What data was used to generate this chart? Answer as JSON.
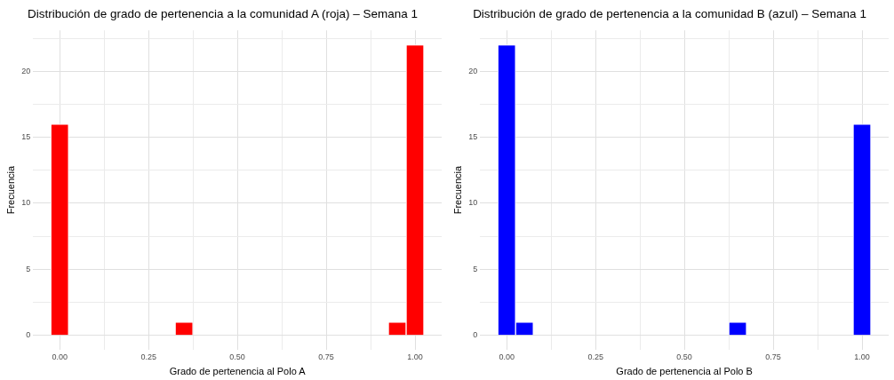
{
  "chart_data": [
    {
      "type": "histogram",
      "title": "Distribución de grado de pertenencia a la comunidad A (roja) – Semana 1",
      "xlabel": "Grado de pertenencia al Polo A",
      "ylabel": "Frecuencia",
      "bins": [
        -0.025,
        0.025,
        0.075,
        0.125,
        0.175,
        0.225,
        0.275,
        0.325,
        0.375,
        0.425,
        0.475,
        0.525,
        0.575,
        0.625,
        0.675,
        0.725,
        0.775,
        0.825,
        0.875,
        0.925,
        0.975,
        1.025
      ],
      "values": [
        16,
        0,
        0,
        0,
        0,
        0,
        0,
        1,
        0,
        0,
        0,
        0,
        0,
        0,
        0,
        0,
        0,
        0,
        0,
        1,
        22
      ],
      "color": "#ff0000",
      "xlim": [
        -0.075,
        1.075
      ],
      "ylim": [
        -1.1,
        23.1
      ],
      "xticks": [
        {
          "value": 0,
          "label": "0.00"
        },
        {
          "value": 0.125,
          "label": null
        },
        {
          "value": 0.25,
          "label": "0.25"
        },
        {
          "value": 0.375,
          "label": null
        },
        {
          "value": 0.5,
          "label": "0.50"
        },
        {
          "value": 0.625,
          "label": null
        },
        {
          "value": 0.75,
          "label": "0.75"
        },
        {
          "value": 0.875,
          "label": null
        },
        {
          "value": 1,
          "label": "1.00"
        }
      ],
      "yticks": [
        0,
        {
          "value": 2.5,
          "label": null
        },
        5,
        {
          "value": 7.5,
          "label": null
        },
        10,
        {
          "value": 12.5,
          "label": null
        },
        15,
        {
          "value": 17.5,
          "label": null
        },
        20,
        {
          "value": 22.5,
          "label": null
        }
      ],
      "grid": true,
      "legend": false
    },
    {
      "type": "histogram",
      "title": "Distribución de grado de pertenencia a la comunidad B (azul) – Semana 1",
      "xlabel": "Grado de pertenencia al Polo B",
      "ylabel": "Frecuencia",
      "bins": [
        -0.025,
        0.025,
        0.075,
        0.125,
        0.175,
        0.225,
        0.275,
        0.325,
        0.375,
        0.425,
        0.475,
        0.525,
        0.575,
        0.625,
        0.675,
        0.725,
        0.775,
        0.825,
        0.875,
        0.925,
        0.975,
        1.025
      ],
      "values": [
        22,
        1,
        0,
        0,
        0,
        0,
        0,
        0,
        0,
        0,
        0,
        0,
        0,
        1,
        0,
        0,
        0,
        0,
        0,
        0,
        16
      ],
      "color": "#0000ff",
      "xlim": [
        -0.075,
        1.075
      ],
      "ylim": [
        -1.1,
        23.1
      ],
      "xticks": [
        {
          "value": 0,
          "label": "0.00"
        },
        {
          "value": 0.125,
          "label": null
        },
        {
          "value": 0.25,
          "label": "0.25"
        },
        {
          "value": 0.375,
          "label": null
        },
        {
          "value": 0.5,
          "label": "0.50"
        },
        {
          "value": 0.625,
          "label": null
        },
        {
          "value": 0.75,
          "label": "0.75"
        },
        {
          "value": 0.875,
          "label": null
        },
        {
          "value": 1,
          "label": "1.00"
        }
      ],
      "yticks": [
        0,
        {
          "value": 2.5,
          "label": null
        },
        5,
        {
          "value": 7.5,
          "label": null
        },
        10,
        {
          "value": 12.5,
          "label": null
        },
        15,
        {
          "value": 17.5,
          "label": null
        },
        20,
        {
          "value": 22.5,
          "label": null
        }
      ],
      "grid": true,
      "legend": false
    }
  ]
}
